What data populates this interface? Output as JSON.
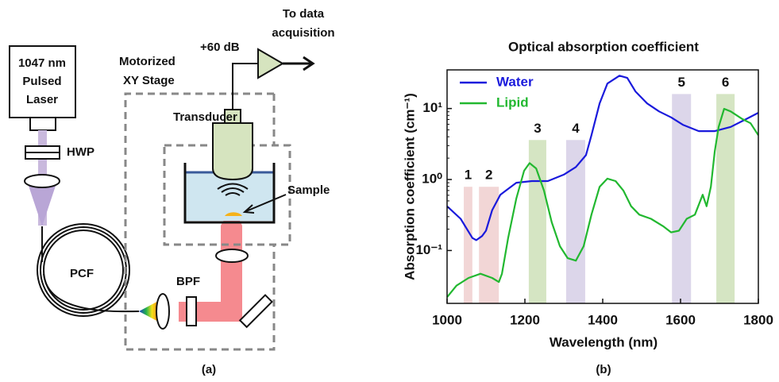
{
  "diagram": {
    "laser": [
      "1047 nm",
      "Pulsed",
      "Laser"
    ],
    "hwp": "HWP",
    "pcf": "PCF",
    "bpf": "BPF",
    "stage": [
      "Motorized",
      "XY Stage"
    ],
    "transducer": "Transducer",
    "amplifier": "+60 dB",
    "output": [
      "To data",
      "acquisition"
    ],
    "sample": "Sample",
    "caption": "(a)"
  },
  "chart_data": {
    "type": "line",
    "title": "Optical absorption coefficient",
    "x_label": "Wavelength (nm)",
    "y_label": "Absorption coefficient (cm⁻¹)",
    "caption": "(b)",
    "log_y": true,
    "legend": "top-left",
    "xlim": [
      1000,
      1800
    ],
    "xticks": [
      1000,
      1200,
      1400,
      1600,
      1800
    ],
    "ylim": [
      0.018,
      35
    ],
    "yticks": [
      {
        "value": 0.1,
        "label": "10⁻¹"
      },
      {
        "value": 1,
        "label": "10⁰"
      },
      {
        "value": 10,
        "label": "10¹"
      }
    ],
    "series": [
      {
        "name": "Water",
        "color": "#1a1adc",
        "x": [
          1000,
          1035,
          1065,
          1075,
          1090,
          1100,
          1116,
          1137,
          1178,
          1218,
          1259,
          1300,
          1331,
          1357,
          1371,
          1392,
          1412,
          1443,
          1463,
          1484,
          1514,
          1545,
          1576,
          1606,
          1647,
          1688,
          1729,
          1769,
          1800
        ],
        "values": [
          0.42,
          0.28,
          0.15,
          0.14,
          0.16,
          0.19,
          0.37,
          0.61,
          0.9,
          0.95,
          0.95,
          1.17,
          1.5,
          2.2,
          4.2,
          11.8,
          22.5,
          29,
          27,
          17.4,
          11.8,
          9.1,
          7.5,
          5.9,
          4.8,
          4.8,
          5.5,
          7.1,
          8.7
        ]
      },
      {
        "name": "Lipid",
        "color": "#22b830",
        "x": [
          1000,
          1024,
          1055,
          1086,
          1116,
          1133,
          1141,
          1157,
          1178,
          1198,
          1212,
          1229,
          1249,
          1269,
          1290,
          1310,
          1331,
          1351,
          1371,
          1392,
          1412,
          1433,
          1453,
          1473,
          1494,
          1524,
          1555,
          1576,
          1596,
          1616,
          1637,
          1657,
          1667,
          1678,
          1688,
          1698,
          1712,
          1729,
          1759,
          1780,
          1800
        ],
        "values": [
          0.022,
          0.032,
          0.041,
          0.047,
          0.041,
          0.036,
          0.047,
          0.15,
          0.54,
          1.33,
          1.7,
          1.43,
          0.7,
          0.25,
          0.115,
          0.078,
          0.072,
          0.115,
          0.32,
          0.79,
          1.03,
          0.95,
          0.7,
          0.42,
          0.32,
          0.28,
          0.22,
          0.18,
          0.19,
          0.28,
          0.32,
          0.61,
          0.42,
          0.79,
          2.5,
          5.5,
          9.9,
          9.1,
          7.1,
          6.2,
          4.2
        ]
      }
    ],
    "bands": [
      {
        "label": "1",
        "x": [
          1043,
          1065
        ],
        "top": 0.79,
        "color": "#f2d6d6"
      },
      {
        "label": "2",
        "x": [
          1082,
          1133
        ],
        "top": 0.79,
        "color": "#f2d6d6"
      },
      {
        "label": "3",
        "x": [
          1210,
          1255
        ],
        "top": 3.6,
        "color": "#d5e5c3"
      },
      {
        "label": "4",
        "x": [
          1306,
          1355
        ],
        "top": 3.6,
        "color": "#dcd6ea"
      },
      {
        "label": "5",
        "x": [
          1578,
          1627
        ],
        "top": 16,
        "color": "#dcd6ea"
      },
      {
        "label": "6",
        "x": [
          1692,
          1739
        ],
        "top": 16,
        "color": "#d5e5c3"
      }
    ]
  }
}
